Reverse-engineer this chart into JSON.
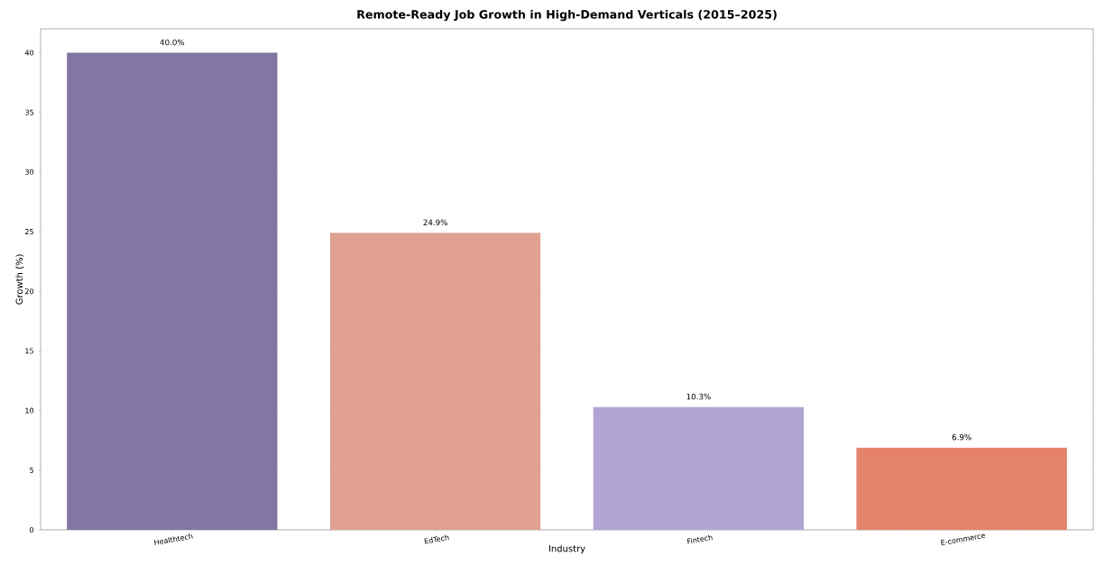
{
  "chart_data": {
    "type": "bar",
    "title": "Remote-Ready Job Growth in High-Demand Verticals (2015–2025)",
    "xlabel": "Industry",
    "ylabel": "Growth (%)",
    "categories": [
      "Healthtech",
      "EdTech",
      "Fintech",
      "E-commerce"
    ],
    "values": [
      40.0,
      24.9,
      10.3,
      6.9
    ],
    "colors": [
      "#8276a2",
      "#e0a191",
      "#b0a5d3",
      "#e5826b"
    ],
    "value_labels": [
      "40.0%",
      "24.9%",
      "10.3%",
      "6.9%"
    ],
    "ylim": [
      0,
      42
    ],
    "yticks": [
      0,
      5,
      10,
      15,
      20,
      25,
      30,
      35,
      40
    ],
    "grid": "y"
  }
}
